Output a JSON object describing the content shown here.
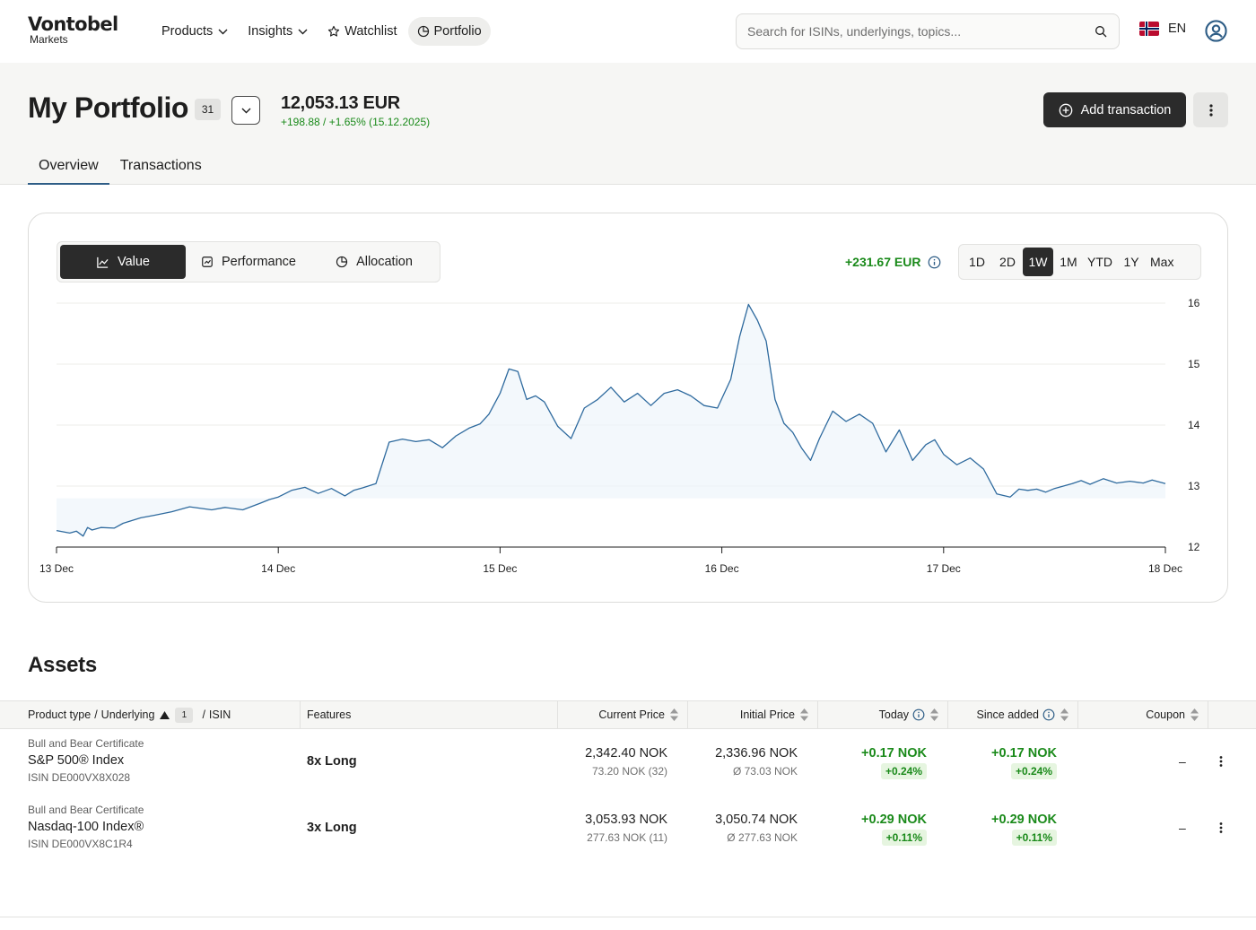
{
  "brand": {
    "name": "Vontobel",
    "sub": "Markets"
  },
  "nav": {
    "products": "Products",
    "insights": "Insights",
    "watchlist": "Watchlist",
    "portfolio": "Portfolio"
  },
  "search": {
    "placeholder": "Search for ISINs, underlyings, topics..."
  },
  "lang": {
    "code": "EN"
  },
  "portfolio": {
    "title": "My Portfolio",
    "count": "31",
    "value": "12,053.13 EUR",
    "change": "+198.88 / +1.65% (15.12.2025)",
    "add_label": "Add transaction"
  },
  "tabs": {
    "overview": "Overview",
    "transactions": "Transactions"
  },
  "chart_panel": {
    "views": {
      "value": "Value",
      "performance": "Performance",
      "allocation": "Allocation"
    },
    "gain": "+231.67 EUR",
    "ranges": [
      "1D",
      "2D",
      "1W",
      "1M",
      "YTD",
      "1Y",
      "Max"
    ],
    "active_range": "1W"
  },
  "chart_data": {
    "type": "area",
    "title": "",
    "xlabel": "",
    "ylabel": "",
    "y_axis_position": "right",
    "ylim": [
      12,
      16
    ],
    "yticks": [
      12,
      13,
      14,
      15,
      16
    ],
    "x_ticks": [
      "13 Dec",
      "14 Dec",
      "15 Dec",
      "16 Dec",
      "17 Dec",
      "18 Dec"
    ],
    "xlim": [
      0,
      5
    ],
    "grid": true,
    "color": "#2e6a9e",
    "series": [
      {
        "x": [
          0,
          0.06,
          0.09,
          0.12,
          0.14,
          0.16,
          0.2,
          0.26,
          0.3,
          0.38,
          0.44,
          0.52,
          0.6,
          0.7,
          0.76,
          0.84,
          0.92,
          0.96,
          1.0,
          1.06,
          1.12,
          1.18,
          1.24,
          1.3,
          1.34,
          1.38,
          1.44,
          1.5,
          1.56,
          1.62,
          1.68,
          1.74,
          1.8,
          1.86,
          1.91,
          1.95,
          2.0,
          2.04,
          2.08,
          2.12,
          2.16,
          2.2,
          2.26,
          2.32,
          2.38,
          2.44,
          2.5,
          2.56,
          2.62,
          2.68,
          2.74,
          2.8,
          2.86,
          2.92,
          2.98,
          3.04,
          3.08,
          3.12,
          3.16,
          3.2,
          3.24,
          3.28,
          3.32,
          3.36,
          3.4,
          3.44,
          3.5,
          3.56,
          3.62,
          3.68,
          3.74,
          3.8,
          3.86,
          3.92,
          3.96,
          4.0,
          4.06,
          4.12,
          4.18,
          4.24,
          4.3,
          4.34,
          4.38,
          4.42,
          4.46,
          4.5,
          4.54,
          4.58,
          4.62,
          4.66,
          4.72,
          4.78,
          4.84,
          4.9,
          4.94,
          5.0
        ],
        "values": [
          12.27,
          12.23,
          12.26,
          12.18,
          12.32,
          12.28,
          12.32,
          12.31,
          12.39,
          12.48,
          12.52,
          12.58,
          12.66,
          12.61,
          12.65,
          12.61,
          12.72,
          12.78,
          12.82,
          12.93,
          12.98,
          12.88,
          12.96,
          12.84,
          12.93,
          12.97,
          13.04,
          13.72,
          13.77,
          13.73,
          13.76,
          13.63,
          13.82,
          13.95,
          14.02,
          14.18,
          14.52,
          14.92,
          14.88,
          14.42,
          14.48,
          14.38,
          13.98,
          13.78,
          14.28,
          14.42,
          14.62,
          14.38,
          14.52,
          14.32,
          14.52,
          14.58,
          14.48,
          14.32,
          14.28,
          14.75,
          15.45,
          15.98,
          15.72,
          15.38,
          14.42,
          14.03,
          13.88,
          13.62,
          13.42,
          13.78,
          14.23,
          14.06,
          14.18,
          14.03,
          13.56,
          13.92,
          13.42,
          13.68,
          13.76,
          13.52,
          13.35,
          13.46,
          13.28,
          12.87,
          12.82,
          12.95,
          12.93,
          12.95,
          12.9,
          12.96,
          13.0,
          13.04,
          13.09,
          13.03,
          13.12,
          13.05,
          13.08,
          13.05,
          13.1,
          13.04
        ]
      }
    ]
  },
  "assets": {
    "title": "Assets",
    "columns": {
      "product": "Product type",
      "underlying": "Underlying",
      "sort_rank": "1",
      "isin": "ISIN",
      "features": "Features",
      "current_price": "Current Price",
      "initial_price": "Initial Price",
      "today": "Today",
      "since_added": "Since added",
      "coupon": "Coupon"
    },
    "rows": [
      {
        "type": "Bull and Bear Certificate",
        "name": "S&P 500® Index",
        "isin": "ISIN DE000VX8X028",
        "features": "8x Long",
        "current_price": "2,342.40 NOK",
        "current_sub": "73.20 NOK (32)",
        "initial_price": "2,336.96 NOK",
        "initial_sub": "Ø 73.03 NOK",
        "today": "+0.17 NOK",
        "today_pct": "+0.24%",
        "since": "+0.17 NOK",
        "since_pct": "+0.24%",
        "coupon": "–"
      },
      {
        "type": "Bull and Bear Certificate",
        "name": "Nasdaq-100 Index®",
        "isin": "ISIN DE000VX8C1R4",
        "features": "3x Long",
        "current_price": "3,053.93 NOK",
        "current_sub": "277.63 NOK (11)",
        "initial_price": "3,050.74 NOK",
        "initial_sub": "Ø 277.63 NOK",
        "today": "+0.29 NOK",
        "today_pct": "+0.11%",
        "since": "+0.29 NOK",
        "since_pct": "+0.11%",
        "coupon": "–"
      }
    ]
  }
}
